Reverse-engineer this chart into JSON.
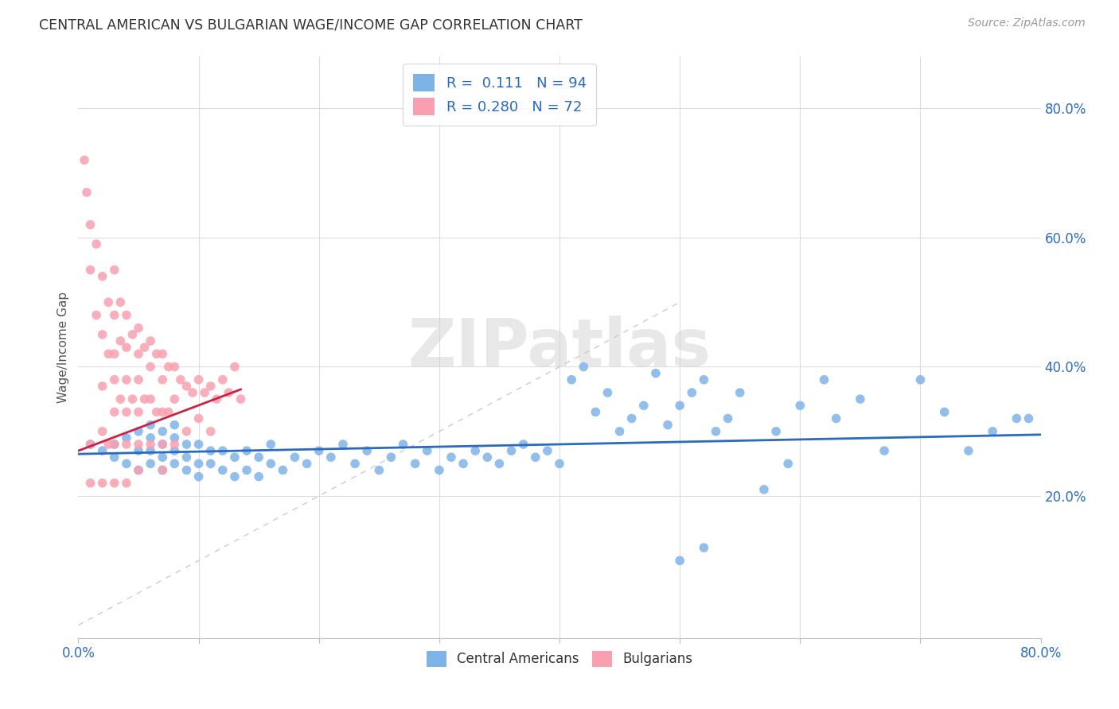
{
  "title": "CENTRAL AMERICAN VS BULGARIAN WAGE/INCOME GAP CORRELATION CHART",
  "source": "Source: ZipAtlas.com",
  "ylabel": "Wage/Income Gap",
  "ytick_labels": [
    "20.0%",
    "40.0%",
    "60.0%",
    "80.0%"
  ],
  "ytick_values": [
    0.2,
    0.4,
    0.6,
    0.8
  ],
  "xlim": [
    0.0,
    0.8
  ],
  "ylim": [
    -0.02,
    0.88
  ],
  "watermark": "ZIPatlas",
  "blue_color": "#7EB3E8",
  "pink_color": "#F8A0B0",
  "blue_line_color": "#2B6BBD",
  "pink_line_color": "#CC2244",
  "diagonal_color": "#CCCCCC",
  "background_color": "#FFFFFF",
  "grid_color": "#DDDDDD",
  "ca_x": [
    0.01,
    0.02,
    0.03,
    0.03,
    0.04,
    0.04,
    0.05,
    0.05,
    0.05,
    0.06,
    0.06,
    0.06,
    0.06,
    0.07,
    0.07,
    0.07,
    0.07,
    0.08,
    0.08,
    0.08,
    0.08,
    0.09,
    0.09,
    0.09,
    0.1,
    0.1,
    0.1,
    0.11,
    0.11,
    0.12,
    0.12,
    0.13,
    0.13,
    0.14,
    0.14,
    0.15,
    0.15,
    0.16,
    0.16,
    0.17,
    0.18,
    0.19,
    0.2,
    0.21,
    0.22,
    0.23,
    0.24,
    0.25,
    0.26,
    0.27,
    0.28,
    0.29,
    0.3,
    0.31,
    0.32,
    0.33,
    0.34,
    0.35,
    0.36,
    0.37,
    0.38,
    0.39,
    0.4,
    0.41,
    0.42,
    0.43,
    0.44,
    0.45,
    0.46,
    0.47,
    0.48,
    0.49,
    0.5,
    0.51,
    0.52,
    0.53,
    0.54,
    0.55,
    0.57,
    0.58,
    0.59,
    0.6,
    0.62,
    0.63,
    0.65,
    0.67,
    0.7,
    0.72,
    0.74,
    0.76,
    0.78,
    0.79,
    0.5,
    0.52
  ],
  "ca_y": [
    0.28,
    0.27,
    0.26,
    0.28,
    0.25,
    0.29,
    0.24,
    0.27,
    0.3,
    0.25,
    0.27,
    0.29,
    0.31,
    0.24,
    0.26,
    0.28,
    0.3,
    0.25,
    0.27,
    0.29,
    0.31,
    0.24,
    0.26,
    0.28,
    0.23,
    0.25,
    0.28,
    0.25,
    0.27,
    0.24,
    0.27,
    0.23,
    0.26,
    0.24,
    0.27,
    0.23,
    0.26,
    0.25,
    0.28,
    0.24,
    0.26,
    0.25,
    0.27,
    0.26,
    0.28,
    0.25,
    0.27,
    0.24,
    0.26,
    0.28,
    0.25,
    0.27,
    0.24,
    0.26,
    0.25,
    0.27,
    0.26,
    0.25,
    0.27,
    0.28,
    0.26,
    0.27,
    0.25,
    0.38,
    0.4,
    0.33,
    0.36,
    0.3,
    0.32,
    0.34,
    0.39,
    0.31,
    0.34,
    0.36,
    0.38,
    0.3,
    0.32,
    0.36,
    0.21,
    0.3,
    0.25,
    0.34,
    0.38,
    0.32,
    0.35,
    0.27,
    0.38,
    0.33,
    0.27,
    0.3,
    0.32,
    0.32,
    0.1,
    0.12
  ],
  "bg_x": [
    0.005,
    0.007,
    0.01,
    0.01,
    0.01,
    0.01,
    0.015,
    0.015,
    0.02,
    0.02,
    0.02,
    0.02,
    0.02,
    0.025,
    0.025,
    0.025,
    0.03,
    0.03,
    0.03,
    0.03,
    0.03,
    0.03,
    0.03,
    0.035,
    0.035,
    0.035,
    0.04,
    0.04,
    0.04,
    0.04,
    0.04,
    0.04,
    0.045,
    0.045,
    0.05,
    0.05,
    0.05,
    0.05,
    0.05,
    0.05,
    0.055,
    0.055,
    0.06,
    0.06,
    0.06,
    0.06,
    0.065,
    0.065,
    0.07,
    0.07,
    0.07,
    0.07,
    0.07,
    0.075,
    0.075,
    0.08,
    0.08,
    0.08,
    0.085,
    0.09,
    0.09,
    0.095,
    0.1,
    0.1,
    0.105,
    0.11,
    0.11,
    0.115,
    0.12,
    0.125,
    0.13,
    0.135
  ],
  "bg_y": [
    0.72,
    0.67,
    0.62,
    0.55,
    0.28,
    0.22,
    0.59,
    0.48,
    0.54,
    0.45,
    0.37,
    0.3,
    0.22,
    0.5,
    0.42,
    0.28,
    0.55,
    0.48,
    0.42,
    0.38,
    0.33,
    0.28,
    0.22,
    0.5,
    0.44,
    0.35,
    0.48,
    0.43,
    0.38,
    0.33,
    0.28,
    0.22,
    0.45,
    0.35,
    0.46,
    0.42,
    0.38,
    0.33,
    0.28,
    0.24,
    0.43,
    0.35,
    0.44,
    0.4,
    0.35,
    0.28,
    0.42,
    0.33,
    0.42,
    0.38,
    0.33,
    0.28,
    0.24,
    0.4,
    0.33,
    0.4,
    0.35,
    0.28,
    0.38,
    0.37,
    0.3,
    0.36,
    0.38,
    0.32,
    0.36,
    0.37,
    0.3,
    0.35,
    0.38,
    0.36,
    0.4,
    0.35
  ]
}
